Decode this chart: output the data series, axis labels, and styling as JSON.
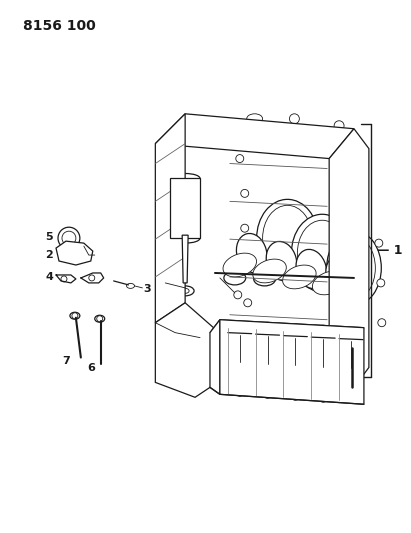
{
  "title_number": "8156 100",
  "background_color": "#ffffff",
  "line_color": "#1a1a1a",
  "lw_main": 0.9,
  "lw_thin": 0.6,
  "label_1": "1",
  "label_2": "2",
  "label_3": "3",
  "label_4": "4",
  "label_5": "5",
  "label_6": "6",
  "label_7": "7"
}
